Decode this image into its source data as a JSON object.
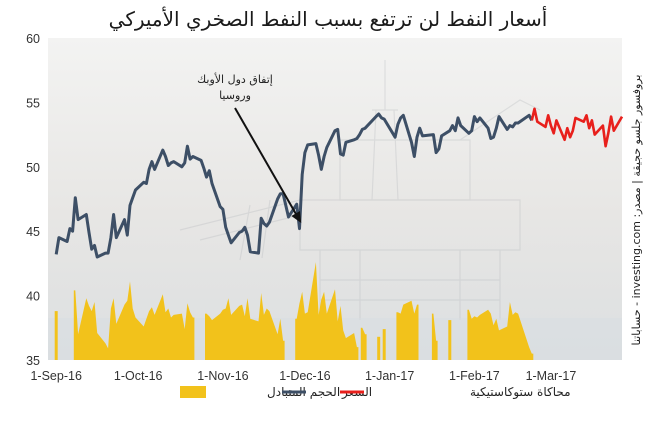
{
  "chart_data": {
    "type": "line",
    "title": "أسعار النفط لن ترتفع بسبب النفط الصخري الأميركي",
    "source": "بروفسور جلسو حجيقة | مصدر: investing.com - حساباتنا",
    "annotation": {
      "lines": [
        "إتفاق دول الأوبك",
        "وروسيا"
      ],
      "target_date": "2016-11-30",
      "target_value": 45.5
    },
    "x_axis": {
      "range": [
        "2016-08-29",
        "2017-03-27"
      ],
      "ticks": [
        {
          "date": "2016-09-01",
          "label": "1-Sep-16"
        },
        {
          "date": "2016-10-01",
          "label": "1-Oct-16"
        },
        {
          "date": "2016-11-01",
          "label": "1-Nov-16"
        },
        {
          "date": "2016-12-01",
          "label": "1-Dec-16"
        },
        {
          "date": "2017-01-01",
          "label": "1-Jan-17"
        },
        {
          "date": "2017-02-01",
          "label": "1-Feb-17"
        },
        {
          "date": "2017-03-01",
          "label": "1-Mar-17"
        }
      ]
    },
    "y_axis": {
      "range": [
        35,
        60
      ],
      "ticks": [
        35,
        40,
        45,
        50,
        55,
        60
      ]
    },
    "grid": false,
    "legend": {
      "placement": "bottom",
      "entries": [
        {
          "key": "volume",
          "label": "الحجم المتبادل"
        },
        {
          "key": "price",
          "label": "السعر"
        },
        {
          "key": "stochastic",
          "label": "محاكاة ستوكاستيكية"
        }
      ]
    },
    "colors": {
      "price": "#3d4f66",
      "volume": "#f2c21b",
      "stochastic": "#e8201c"
    },
    "series": [
      {
        "key": "price",
        "points": [
          [
            "2016-09-01",
            43.2
          ],
          [
            "2016-09-02",
            44.5
          ],
          [
            "2016-09-05",
            44.2
          ],
          [
            "2016-09-06",
            45.2
          ],
          [
            "2016-09-07",
            45.0
          ],
          [
            "2016-09-08",
            47.6
          ],
          [
            "2016-09-09",
            45.9
          ],
          [
            "2016-09-12",
            46.3
          ],
          [
            "2016-09-13",
            44.9
          ],
          [
            "2016-09-14",
            43.6
          ],
          [
            "2016-09-15",
            43.9
          ],
          [
            "2016-09-16",
            43.0
          ],
          [
            "2016-09-19",
            43.3
          ],
          [
            "2016-09-20",
            43.3
          ],
          [
            "2016-09-21",
            44.5
          ],
          [
            "2016-09-22",
            46.3
          ],
          [
            "2016-09-23",
            44.5
          ],
          [
            "2016-09-26",
            45.9
          ],
          [
            "2016-09-27",
            44.7
          ],
          [
            "2016-09-28",
            47.0
          ],
          [
            "2016-09-29",
            47.6
          ],
          [
            "2016-09-30",
            48.2
          ],
          [
            "2016-10-03",
            48.8
          ],
          [
            "2016-10-04",
            48.7
          ],
          [
            "2016-10-05",
            49.8
          ],
          [
            "2016-10-06",
            50.4
          ],
          [
            "2016-10-07",
            49.8
          ],
          [
            "2016-10-10",
            51.3
          ],
          [
            "2016-10-11",
            50.8
          ],
          [
            "2016-10-12",
            50.1
          ],
          [
            "2016-10-13",
            50.3
          ],
          [
            "2016-10-14",
            50.4
          ],
          [
            "2016-10-17",
            50.0
          ],
          [
            "2016-10-18",
            50.3
          ],
          [
            "2016-10-19",
            51.6
          ],
          [
            "2016-10-20",
            50.6
          ],
          [
            "2016-10-21",
            50.8
          ],
          [
            "2016-10-24",
            50.5
          ],
          [
            "2016-10-25",
            49.9
          ],
          [
            "2016-10-26",
            49.2
          ],
          [
            "2016-10-27",
            49.7
          ],
          [
            "2016-10-28",
            48.7
          ],
          [
            "2016-10-31",
            46.9
          ],
          [
            "2016-11-01",
            46.7
          ],
          [
            "2016-11-02",
            45.3
          ],
          [
            "2016-11-03",
            44.7
          ],
          [
            "2016-11-04",
            44.1
          ],
          [
            "2016-11-07",
            44.9
          ],
          [
            "2016-11-08",
            45.0
          ],
          [
            "2016-11-09",
            45.3
          ],
          [
            "2016-11-10",
            44.7
          ],
          [
            "2016-11-11",
            43.4
          ],
          [
            "2016-11-14",
            43.3
          ],
          [
            "2016-11-15",
            46.0
          ],
          [
            "2016-11-16",
            45.6
          ],
          [
            "2016-11-17",
            45.4
          ],
          [
            "2016-11-18",
            45.7
          ],
          [
            "2016-11-21",
            47.5
          ],
          [
            "2016-11-22",
            47.9
          ],
          [
            "2016-11-23",
            47.9
          ],
          [
            "2016-11-25",
            46.1
          ],
          [
            "2016-11-28",
            47.1
          ],
          [
            "2016-11-29",
            45.2
          ],
          [
            "2016-11-30",
            49.4
          ],
          [
            "2016-12-01",
            51.1
          ],
          [
            "2016-12-02",
            51.7
          ],
          [
            "2016-12-05",
            51.8
          ],
          [
            "2016-12-06",
            50.9
          ],
          [
            "2016-12-07",
            49.8
          ],
          [
            "2016-12-08",
            50.8
          ],
          [
            "2016-12-09",
            51.5
          ],
          [
            "2016-12-12",
            52.8
          ],
          [
            "2016-12-13",
            52.9
          ],
          [
            "2016-12-14",
            51.0
          ],
          [
            "2016-12-15",
            50.9
          ],
          [
            "2016-12-16",
            51.9
          ],
          [
            "2016-12-19",
            52.1
          ],
          [
            "2016-12-20",
            52.2
          ],
          [
            "2016-12-21",
            52.5
          ],
          [
            "2016-12-22",
            52.9
          ],
          [
            "2016-12-23",
            53.0
          ],
          [
            "2016-12-27",
            53.9
          ],
          [
            "2016-12-28",
            54.1
          ],
          [
            "2016-12-29",
            53.8
          ],
          [
            "2016-12-30",
            53.7
          ],
          [
            "2017-01-03",
            52.3
          ],
          [
            "2017-01-04",
            53.3
          ],
          [
            "2017-01-05",
            53.8
          ],
          [
            "2017-01-06",
            54.0
          ],
          [
            "2017-01-09",
            51.9
          ],
          [
            "2017-01-10",
            50.8
          ],
          [
            "2017-01-11",
            52.3
          ],
          [
            "2017-01-12",
            53.0
          ],
          [
            "2017-01-13",
            52.4
          ],
          [
            "2017-01-17",
            52.5
          ],
          [
            "2017-01-18",
            51.1
          ],
          [
            "2017-01-19",
            51.4
          ],
          [
            "2017-01-20",
            52.4
          ],
          [
            "2017-01-23",
            52.8
          ],
          [
            "2017-01-24",
            53.2
          ],
          [
            "2017-01-25",
            52.8
          ],
          [
            "2017-01-26",
            53.8
          ],
          [
            "2017-01-27",
            53.2
          ],
          [
            "2017-01-30",
            52.6
          ],
          [
            "2017-01-31",
            52.8
          ],
          [
            "2017-02-01",
            53.9
          ],
          [
            "2017-02-02",
            53.5
          ],
          [
            "2017-02-03",
            53.8
          ],
          [
            "2017-02-06",
            53.0
          ],
          [
            "2017-02-07",
            52.2
          ],
          [
            "2017-02-08",
            52.3
          ],
          [
            "2017-02-09",
            53.0
          ],
          [
            "2017-02-10",
            53.9
          ],
          [
            "2017-02-13",
            52.9
          ],
          [
            "2017-02-14",
            53.2
          ],
          [
            "2017-02-15",
            53.1
          ],
          [
            "2017-02-16",
            53.4
          ],
          [
            "2017-02-17",
            53.4
          ],
          [
            "2017-02-21",
            54.0
          ],
          [
            "2017-02-22",
            53.6
          ]
        ]
      },
      {
        "key": "stochastic",
        "points": [
          [
            "2017-02-22",
            53.6
          ],
          [
            "2017-02-23",
            54.5
          ],
          [
            "2017-02-24",
            53.5
          ],
          [
            "2017-02-27",
            53.1
          ],
          [
            "2017-02-28",
            54.0
          ],
          [
            "2017-03-01",
            53.2
          ],
          [
            "2017-03-02",
            52.6
          ],
          [
            "2017-03-03",
            53.6
          ],
          [
            "2017-03-06",
            52.1
          ],
          [
            "2017-03-07",
            53.0
          ],
          [
            "2017-03-08",
            52.3
          ],
          [
            "2017-03-09",
            52.8
          ],
          [
            "2017-03-10",
            53.8
          ],
          [
            "2017-03-13",
            53.5
          ],
          [
            "2017-03-14",
            54.0
          ],
          [
            "2017-03-15",
            53.0
          ],
          [
            "2017-03-16",
            53.6
          ],
          [
            "2017-03-17",
            52.5
          ],
          [
            "2017-03-20",
            53.2
          ],
          [
            "2017-03-21",
            51.6
          ],
          [
            "2017-03-22",
            52.6
          ],
          [
            "2017-03-23",
            53.9
          ],
          [
            "2017-03-24",
            52.8
          ],
          [
            "2017-03-27",
            53.9
          ]
        ]
      },
      {
        "key": "volume",
        "points": [
          [
            "2016-09-01",
            38.8
          ],
          [
            "2016-09-02",
            35.0
          ],
          [
            "2016-09-05",
            35.0
          ],
          [
            "2016-09-06",
            35.0
          ],
          [
            "2016-09-07",
            35.0
          ],
          [
            "2016-09-08",
            40.4
          ],
          [
            "2016-09-09",
            37.0
          ],
          [
            "2016-09-12",
            39.8
          ],
          [
            "2016-09-13",
            39.2
          ],
          [
            "2016-09-14",
            38.8
          ],
          [
            "2016-09-15",
            39.5
          ],
          [
            "2016-09-16",
            37.1
          ],
          [
            "2016-09-19",
            36.3
          ],
          [
            "2016-09-20",
            35.9
          ],
          [
            "2016-09-21",
            39.0
          ],
          [
            "2016-09-22",
            39.8
          ],
          [
            "2016-09-23",
            37.8
          ],
          [
            "2016-09-26",
            39.3
          ],
          [
            "2016-09-27",
            39.6
          ],
          [
            "2016-09-28",
            41.1
          ],
          [
            "2016-09-29",
            39.0
          ],
          [
            "2016-09-30",
            38.3
          ],
          [
            "2016-10-03",
            37.6
          ],
          [
            "2016-10-04",
            38.2
          ],
          [
            "2016-10-05",
            38.8
          ],
          [
            "2016-10-06",
            39.1
          ],
          [
            "2016-10-07",
            38.5
          ],
          [
            "2016-10-10",
            40.1
          ],
          [
            "2016-10-11",
            38.7
          ],
          [
            "2016-10-12",
            39.0
          ],
          [
            "2016-10-13",
            38.3
          ],
          [
            "2016-10-14",
            38.5
          ],
          [
            "2016-10-17",
            38.6
          ],
          [
            "2016-10-18",
            37.4
          ],
          [
            "2016-10-19",
            39.4
          ],
          [
            "2016-10-20",
            38.7
          ],
          [
            "2016-10-21",
            38.3
          ],
          [
            "2016-10-24",
            35.0
          ],
          [
            "2016-10-25",
            35.0
          ],
          [
            "2016-10-26",
            38.6
          ],
          [
            "2016-10-27",
            38.4
          ],
          [
            "2016-10-28",
            38.1
          ],
          [
            "2016-10-31",
            38.6
          ],
          [
            "2016-11-01",
            38.9
          ],
          [
            "2016-11-02",
            39.0
          ],
          [
            "2016-11-03",
            39.8
          ],
          [
            "2016-11-04",
            38.5
          ],
          [
            "2016-11-07",
            39.2
          ],
          [
            "2016-11-08",
            39.3
          ],
          [
            "2016-11-09",
            38.4
          ],
          [
            "2016-11-10",
            39.8
          ],
          [
            "2016-11-11",
            38.2
          ],
          [
            "2016-11-14",
            38.0
          ],
          [
            "2016-11-15",
            40.2
          ],
          [
            "2016-11-16",
            38.5
          ],
          [
            "2016-11-17",
            39.0
          ],
          [
            "2016-11-18",
            38.8
          ],
          [
            "2016-11-21",
            37.0
          ],
          [
            "2016-11-22",
            38.2
          ],
          [
            "2016-11-23",
            36.5
          ],
          [
            "2016-11-25",
            35.0
          ],
          [
            "2016-11-28",
            38.2
          ],
          [
            "2016-11-29",
            39.4
          ],
          [
            "2016-11-30",
            40.3
          ],
          [
            "2016-12-01",
            38.6
          ],
          [
            "2016-12-02",
            38.7
          ],
          [
            "2016-12-05",
            42.6
          ],
          [
            "2016-12-06",
            38.5
          ],
          [
            "2016-12-07",
            39.7
          ],
          [
            "2016-12-08",
            40.3
          ],
          [
            "2016-12-09",
            38.6
          ],
          [
            "2016-12-12",
            40.5
          ],
          [
            "2016-12-13",
            38.0
          ],
          [
            "2016-12-14",
            39.2
          ],
          [
            "2016-12-15",
            37.3
          ],
          [
            "2016-12-16",
            36.7
          ],
          [
            "2016-12-19",
            37.1
          ],
          [
            "2016-12-20",
            36.0
          ],
          [
            "2016-12-21",
            35.0
          ],
          [
            "2016-12-22",
            37.5
          ],
          [
            "2016-12-23",
            37.0
          ],
          [
            "2016-12-27",
            35.0
          ],
          [
            "2016-12-28",
            36.8
          ],
          [
            "2016-12-29",
            35.0
          ],
          [
            "2016-12-30",
            37.4
          ],
          [
            "2017-01-03",
            35.0
          ],
          [
            "2017-01-04",
            38.7
          ],
          [
            "2017-01-05",
            38.6
          ],
          [
            "2017-01-06",
            39.3
          ],
          [
            "2017-01-09",
            39.6
          ],
          [
            "2017-01-10",
            38.6
          ],
          [
            "2017-01-11",
            39.3
          ],
          [
            "2017-01-12",
            35.0
          ],
          [
            "2017-01-13",
            35.0
          ],
          [
            "2017-01-17",
            38.6
          ],
          [
            "2017-01-18",
            36.5
          ],
          [
            "2017-01-19",
            35.0
          ],
          [
            "2017-01-20",
            35.0
          ],
          [
            "2017-01-23",
            38.1
          ],
          [
            "2017-01-24",
            35.0
          ],
          [
            "2017-01-25",
            35.0
          ],
          [
            "2017-01-26",
            35.0
          ],
          [
            "2017-01-27",
            35.0
          ],
          [
            "2017-01-30",
            38.9
          ],
          [
            "2017-01-31",
            38.2
          ],
          [
            "2017-02-01",
            38.4
          ],
          [
            "2017-02-02",
            38.3
          ],
          [
            "2017-02-03",
            38.5
          ],
          [
            "2017-02-06",
            38.9
          ],
          [
            "2017-02-07",
            38.6
          ],
          [
            "2017-02-08",
            37.7
          ],
          [
            "2017-02-09",
            38.2
          ],
          [
            "2017-02-10",
            37.3
          ],
          [
            "2017-02-13",
            37.6
          ],
          [
            "2017-02-14",
            39.5
          ],
          [
            "2017-02-15",
            38.5
          ],
          [
            "2017-02-16",
            38.7
          ],
          [
            "2017-02-17",
            38.6
          ],
          [
            "2017-02-21",
            36.0
          ],
          [
            "2017-02-22",
            35.5
          ]
        ]
      }
    ]
  }
}
